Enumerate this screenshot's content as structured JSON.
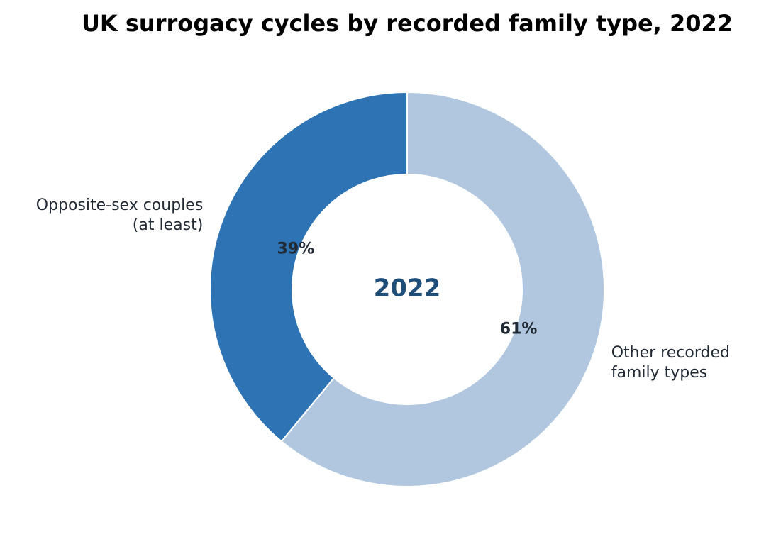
{
  "chart_data": {
    "type": "pie",
    "title": "UK surrogacy cycles by recorded family type, 2022",
    "center_label": "2022",
    "categories": [
      "Opposite-sex couples\n(at least)",
      "Other recorded\nfamily types"
    ],
    "values": [
      39,
      61
    ],
    "value_labels": [
      "39%",
      "61%"
    ],
    "colors": [
      "#2e74b5",
      "#b0c7df"
    ]
  }
}
